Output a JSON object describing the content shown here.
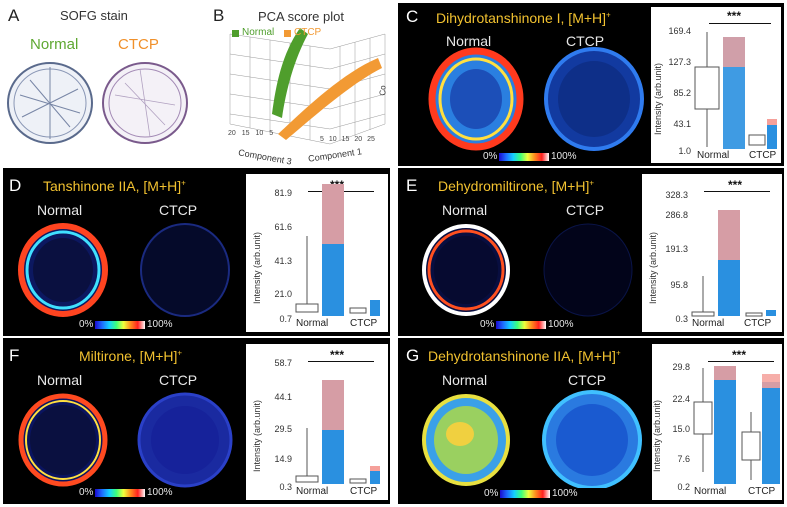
{
  "panelA": {
    "letter": "A",
    "title": "SOFG stain",
    "normal": "Normal",
    "ctcp": "CTCP",
    "colors": {
      "normal": "#5fa832",
      "ctcp": "#f0902a"
    }
  },
  "panelB": {
    "letter": "B",
    "title": "PCA score plot",
    "legend_normal": "Normal",
    "legend_ctcp": "CTCP",
    "axis1": "Component 1",
    "axis3": "Component 3",
    "axis2_abbrev": "Co",
    "ticks_left": [
      "20",
      "15",
      "10",
      "5"
    ],
    "ticks_right": [
      "5",
      "10",
      "15",
      "20",
      "25"
    ]
  },
  "scale_labels": {
    "min": "0%",
    "max": "100%"
  },
  "ylabel": "Intensity (arb.unit)",
  "group_labels": {
    "normal": "Normal",
    "ctcp": "CTCP"
  },
  "sig": "***",
  "panels": [
    {
      "letter": "C",
      "compound": "Dihydrotanshinone I, [M+H]",
      "sup": "+",
      "ticks": [
        "169.4",
        "127.3",
        "85.2",
        "43.1",
        "1.0"
      ]
    },
    {
      "letter": "D",
      "compound": "Tanshinone IIA, [M+H]",
      "sup": "+",
      "ticks": [
        "81.9",
        "61.6",
        "41.3",
        "21.0",
        "0.7"
      ]
    },
    {
      "letter": "E",
      "compound": "Dehydromiltirone, [M+H]",
      "sup": "+",
      "ticks": [
        "328.3",
        "286.8",
        "191.3",
        "95.8",
        "0.3"
      ]
    },
    {
      "letter": "F",
      "compound": "Miltirone, [M+H]",
      "sup": "+",
      "ticks": [
        "58.7",
        "44.1",
        "29.5",
        "14.9",
        "0.3"
      ]
    },
    {
      "letter": "G",
      "compound": "Dehydrotanshinone IIA, [M+H]",
      "sup": "+",
      "ticks": [
        "29.8",
        "22.4",
        "15.0",
        "7.6",
        "0.2"
      ]
    }
  ]
}
